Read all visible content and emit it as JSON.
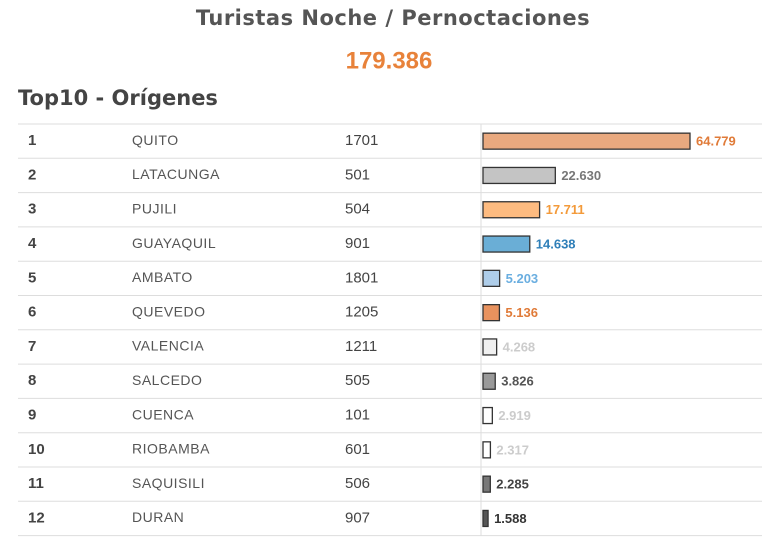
{
  "header": {
    "title": "Turistas Noche / Pernoctaciones",
    "total": "179.386",
    "subtitle": "Top10 - Orígenes"
  },
  "table": {
    "rows": [
      {
        "rank": 1,
        "origin": "QUITO",
        "code": 1701,
        "value": 64779,
        "value_label": "64.779",
        "color": "#e9a97f",
        "label_color": "#e07b39"
      },
      {
        "rank": 2,
        "origin": "LATACUNGA",
        "code": 501,
        "value": 22630,
        "value_label": "22.630",
        "color": "#c4c4c4",
        "label_color": "#777777"
      },
      {
        "rank": 3,
        "origin": "PUJILI",
        "code": 504,
        "value": 17711,
        "value_label": "17.711",
        "color": "#fdbb80",
        "label_color": "#f39a3a"
      },
      {
        "rank": 4,
        "origin": "GUAYAQUIL",
        "code": 901,
        "value": 14638,
        "value_label": "14.638",
        "color": "#6aaed6",
        "label_color": "#2f7fb8"
      },
      {
        "rank": 5,
        "origin": "AMBATO",
        "code": 1801,
        "value": 5203,
        "value_label": "5.203",
        "color": "#aecde9",
        "label_color": "#6aaee0"
      },
      {
        "rank": 6,
        "origin": "QUEVEDO",
        "code": 1205,
        "value": 5136,
        "value_label": "5.136",
        "color": "#e8925e",
        "label_color": "#e07b39"
      },
      {
        "rank": 7,
        "origin": "VALENCIA",
        "code": 1211,
        "value": 4268,
        "value_label": "4.268",
        "color": "#f0f0f0",
        "label_color": "#cccccc"
      },
      {
        "rank": 8,
        "origin": "SALCEDO",
        "code": 505,
        "value": 3826,
        "value_label": "3.826",
        "color": "#999999",
        "label_color": "#555555"
      },
      {
        "rank": 9,
        "origin": "CUENCA",
        "code": 101,
        "value": 2919,
        "value_label": "2.919",
        "color": "#ffffff",
        "label_color": "#cccccc"
      },
      {
        "rank": 10,
        "origin": "RIOBAMBA",
        "code": 601,
        "value": 2317,
        "value_label": "2.317",
        "color": "#ffffff",
        "label_color": "#cccccc"
      },
      {
        "rank": 11,
        "origin": "SAQUISILI",
        "code": 506,
        "value": 2285,
        "value_label": "2.285",
        "color": "#777777",
        "label_color": "#444444"
      },
      {
        "rank": 12,
        "origin": "DURAN",
        "code": 907,
        "value": 1588,
        "value_label": "1.588",
        "color": "#555555",
        "label_color": "#333333"
      }
    ]
  }
}
